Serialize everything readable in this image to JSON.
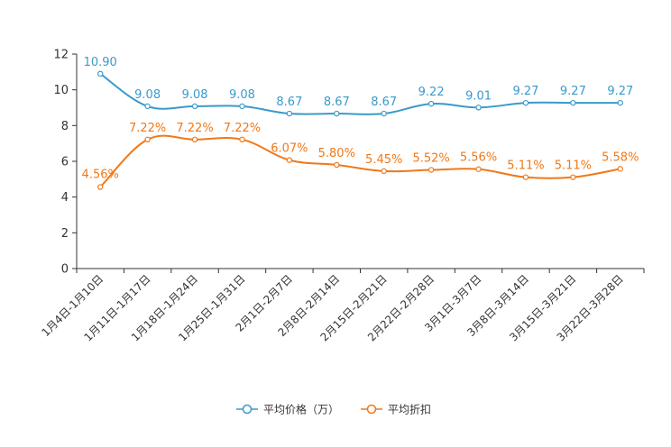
{
  "chart_data": {
    "type": "line",
    "title": "",
    "xlabel": "",
    "ylabel": "",
    "ylim": [
      0,
      12
    ],
    "yticks": [
      0,
      2,
      4,
      6,
      8,
      10,
      12
    ],
    "grid": false,
    "legend_position": "bottom-center",
    "categories": [
      "1月4日-1月10日",
      "1月11日-1月17日",
      "1月18日-1月24日",
      "1月25日-1月31日",
      "2月1日-2月7日",
      "2月8日-2月14日",
      "2月15日-2月21日",
      "2月22日-2月28日",
      "3月1日-3月7日",
      "3月8日-3月14日",
      "3月15日-3月21日",
      "3月22日-3月28日"
    ],
    "series": [
      {
        "name": "平均价格（万）",
        "color": "#3a9ac9",
        "values": [
          10.9,
          9.08,
          9.08,
          9.08,
          8.67,
          8.67,
          8.67,
          9.22,
          9.01,
          9.27,
          9.27,
          9.27
        ],
        "labels": [
          "10.90",
          "9.08",
          "9.08",
          "9.08",
          "8.67",
          "8.67",
          "8.67",
          "9.22",
          "9.01",
          "9.27",
          "9.27",
          "9.27"
        ]
      },
      {
        "name": "平均折扣",
        "color": "#f07818",
        "values": [
          4.56,
          7.22,
          7.22,
          7.22,
          6.07,
          5.8,
          5.45,
          5.52,
          5.56,
          5.11,
          5.11,
          5.58
        ],
        "labels": [
          "4.56%",
          "7.22%",
          "7.22%",
          "7.22%",
          "6.07%",
          "5.80%",
          "5.45%",
          "5.52%",
          "5.56%",
          "5.11%",
          "5.11%",
          "5.58%"
        ]
      }
    ]
  }
}
